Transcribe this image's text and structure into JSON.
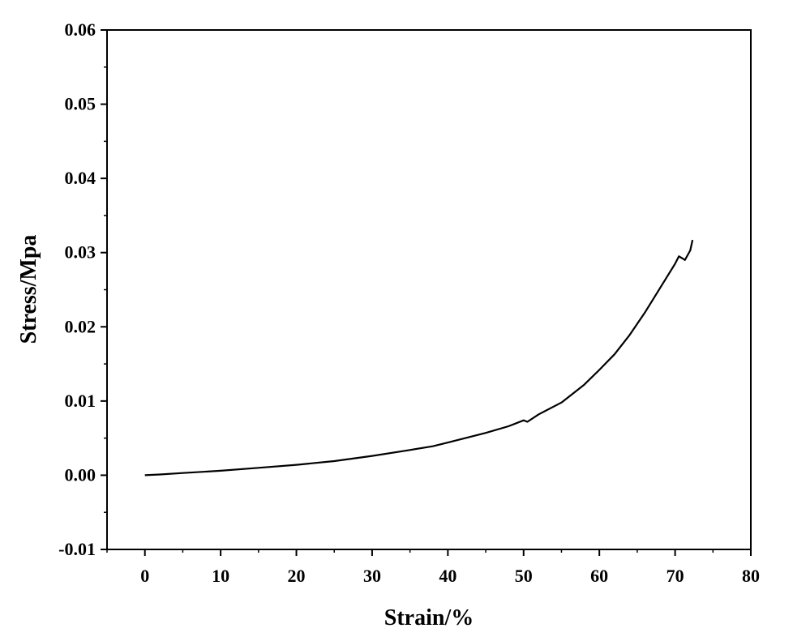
{
  "chart_data": {
    "type": "line",
    "title": "",
    "xlabel": "Strain/%",
    "ylabel": "Stress/Mpa",
    "xlim": [
      -5,
      80
    ],
    "ylim": [
      -0.01,
      0.06
    ],
    "x_ticks": [
      0,
      10,
      20,
      30,
      40,
      50,
      60,
      70,
      80
    ],
    "x_tick_labels": [
      "0",
      "10",
      "20",
      "30",
      "40",
      "50",
      "60",
      "70",
      "80"
    ],
    "y_ticks": [
      -0.01,
      0.0,
      0.01,
      0.02,
      0.03,
      0.04,
      0.05,
      0.06
    ],
    "y_tick_labels": [
      "-0.01",
      "0.00",
      "0.01",
      "0.02",
      "0.03",
      "0.04",
      "0.05",
      "0.06"
    ],
    "grid": false,
    "legend": "none",
    "colors": {
      "line": "#000000",
      "axes": "#000000"
    },
    "series": [
      {
        "x": [
          0,
          2,
          5,
          10,
          15,
          20,
          25,
          30,
          35,
          38,
          40,
          45,
          48,
          50,
          50.5,
          52,
          55,
          58,
          60,
          62,
          64,
          66,
          68,
          70,
          70.5,
          71,
          71.3,
          72,
          72.3
        ],
        "y": [
          0.0,
          0.0001,
          0.0003,
          0.0006,
          0.001,
          0.0014,
          0.0019,
          0.0026,
          0.0034,
          0.0039,
          0.0044,
          0.0057,
          0.0066,
          0.0074,
          0.0072,
          0.0082,
          0.0098,
          0.0122,
          0.0142,
          0.0163,
          0.0189,
          0.0219,
          0.0252,
          0.0285,
          0.0295,
          0.0292,
          0.029,
          0.0303,
          0.0317
        ]
      }
    ]
  }
}
